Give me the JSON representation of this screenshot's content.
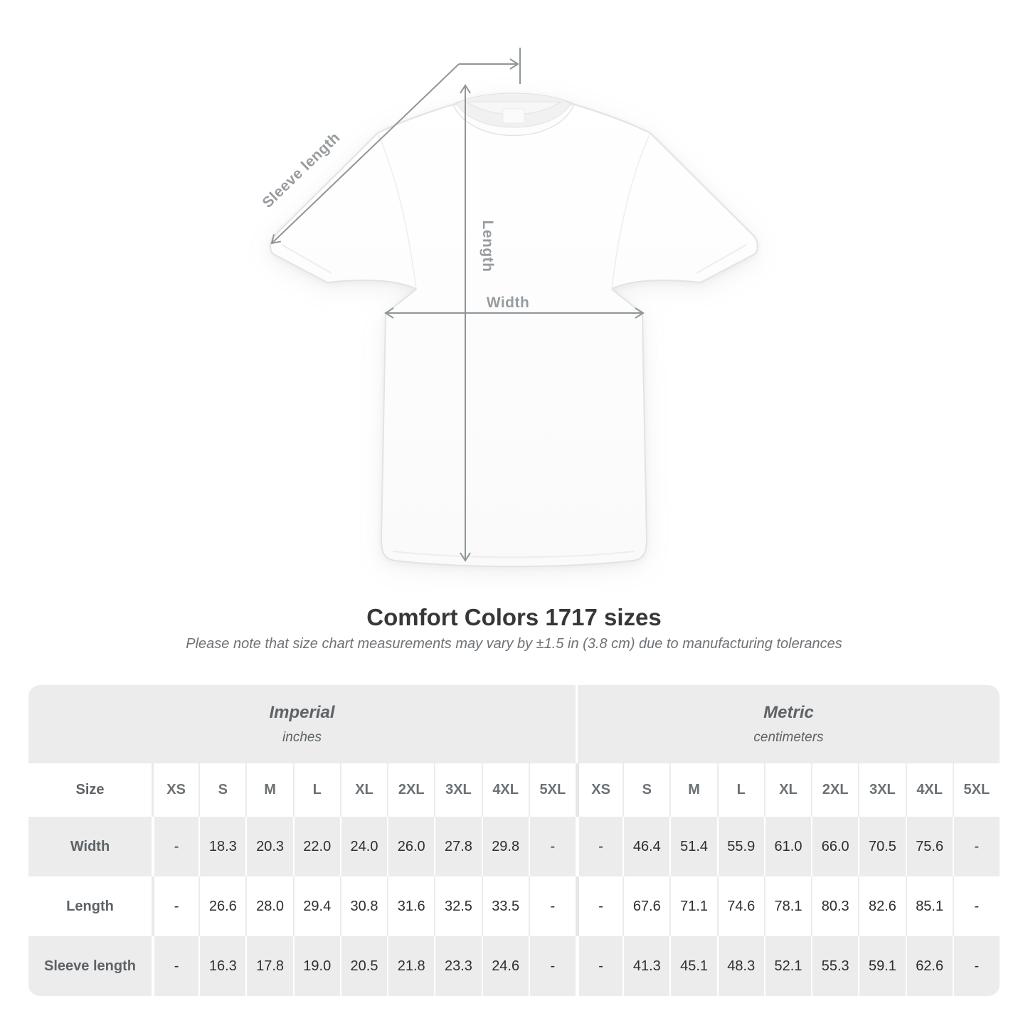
{
  "diagram": {
    "sleeve_label": "Sleeve length",
    "length_label": "Length",
    "width_label": "Width"
  },
  "heading": {
    "title": "Comfort Colors 1717 sizes",
    "subtitle": "Please note that size chart measurements may vary by ±1.5 in (3.8 cm) due to manufacturing tolerances"
  },
  "table": {
    "sections": [
      {
        "name": "Imperial",
        "unit": "inches"
      },
      {
        "name": "Metric",
        "unit": "centimeters"
      }
    ],
    "size_header": "Size",
    "sizes": [
      "XS",
      "S",
      "M",
      "L",
      "XL",
      "2XL",
      "3XL",
      "4XL",
      "5XL"
    ],
    "rows": [
      {
        "label": "Width",
        "imperial": [
          "-",
          "18.3",
          "20.3",
          "22.0",
          "24.0",
          "26.0",
          "27.8",
          "29.8",
          "-"
        ],
        "metric": [
          "-",
          "46.4",
          "51.4",
          "55.9",
          "61.0",
          "66.0",
          "70.5",
          "75.6",
          "-"
        ]
      },
      {
        "label": "Length",
        "imperial": [
          "-",
          "26.6",
          "28.0",
          "29.4",
          "30.8",
          "31.6",
          "32.5",
          "33.5",
          "-"
        ],
        "metric": [
          "-",
          "67.6",
          "71.1",
          "74.6",
          "78.1",
          "80.3",
          "82.6",
          "85.1",
          "-"
        ]
      },
      {
        "label": "Sleeve length",
        "imperial": [
          "-",
          "16.3",
          "17.8",
          "19.0",
          "20.5",
          "21.8",
          "23.3",
          "24.6",
          "-"
        ],
        "metric": [
          "-",
          "41.3",
          "45.1",
          "48.3",
          "52.1",
          "55.3",
          "59.1",
          "62.6",
          "-"
        ]
      }
    ]
  },
  "colors": {
    "annotation_gray": "#8f9599",
    "band_gray": "#ececec",
    "value_text": "#2e2f31",
    "muted_text": "#6b7175",
    "title_text": "#373737"
  }
}
